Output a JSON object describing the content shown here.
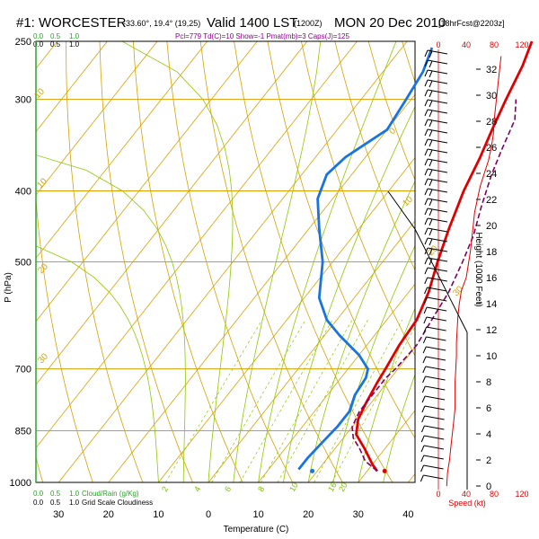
{
  "header": {
    "station": "#1: WORCESTER",
    "coords": "-33.60°, 19.4° (19,25)",
    "valid": "Valid 1400 LST",
    "utc": "(1200Z)",
    "date": "MON 20 Dec 2010",
    "forecast": "[18hrFcst@2203z]",
    "subtitle": "Pcl=779 Td(C)=10 Show=-1 Pmat(mb)=3 Caps(J)=125"
  },
  "left_scale": {
    "labels": [
      "0.0",
      "0.5",
      "1.0"
    ],
    "bottom_legend_green": "Cloud/Rain (g/Kg)",
    "bottom_legend_black": "Grid Scale Cloudiness"
  },
  "speed_scale": {
    "top_ticks": [
      "0",
      "40",
      "80",
      "120"
    ],
    "bottom_ticks": [
      "0",
      "40",
      "80",
      "120"
    ],
    "label": "Speed (kt)"
  },
  "chart_data": {
    "type": "line",
    "title": "",
    "xlabel": "Temperature (C)",
    "ylabel": "P (hPa)",
    "y2label": "Height (1000 Feet)",
    "x_ticks": [
      -30,
      -20,
      -10,
      0,
      10,
      20,
      30,
      40
    ],
    "x_tick_labels": [
      "30",
      "20",
      "10",
      "0",
      "10",
      "20",
      "30",
      "40"
    ],
    "p_ticks": [
      250,
      300,
      400,
      500,
      700,
      850,
      1000
    ],
    "height_ticks": [
      0,
      2,
      4,
      6,
      8,
      10,
      12,
      14,
      16,
      18,
      20,
      22,
      24,
      26,
      28,
      30,
      32
    ],
    "theta_labels": [
      "0",
      "10",
      "20",
      "30",
      "10",
      "10",
      "20",
      "30"
    ],
    "mixing_ratio_labels": [
      "2",
      "4",
      "6",
      "8",
      "10",
      "16",
      "20"
    ],
    "series": [
      {
        "name": "temperature",
        "color": "#e00000",
        "points": [
          [
            32,
            965
          ],
          [
            30,
            945
          ],
          [
            26,
            900
          ],
          [
            22,
            860
          ],
          [
            20,
            820
          ],
          [
            19,
            780
          ],
          [
            18,
            730
          ],
          [
            17.5,
            700
          ],
          [
            16.5,
            650
          ],
          [
            16,
            600
          ],
          [
            14,
            550
          ],
          [
            11,
            500
          ],
          [
            8,
            450
          ],
          [
            5,
            400
          ],
          [
            3,
            360
          ],
          [
            1,
            330
          ],
          [
            -1,
            300
          ],
          [
            -3,
            270
          ],
          [
            -5,
            250
          ]
        ]
      },
      {
        "name": "dewpoint",
        "color": "#1874e0",
        "points": [
          [
            16,
            960
          ],
          [
            16,
            925
          ],
          [
            16.5,
            880
          ],
          [
            17,
            840
          ],
          [
            17,
            800
          ],
          [
            15.5,
            760
          ],
          [
            15,
            720
          ],
          [
            14,
            700
          ],
          [
            10,
            670
          ],
          [
            3,
            630
          ],
          [
            -2,
            600
          ],
          [
            -7,
            560
          ],
          [
            -12,
            500
          ],
          [
            -18,
            450
          ],
          [
            -23,
            410
          ],
          [
            -25,
            380
          ],
          [
            -24,
            360
          ],
          [
            -20,
            330
          ],
          [
            -21,
            300
          ],
          [
            -22,
            275
          ],
          [
            -24,
            255
          ]
        ]
      },
      {
        "name": "parcel",
        "color": "#800060",
        "points": [
          [
            32,
            965
          ],
          [
            28,
            935
          ],
          [
            25,
            900
          ],
          [
            22,
            870
          ],
          [
            20,
            840
          ],
          [
            19,
            800
          ],
          [
            19,
            760
          ],
          [
            19,
            720
          ],
          [
            19.5,
            700
          ],
          [
            20,
            650
          ],
          [
            19,
            600
          ],
          [
            18,
            550
          ],
          [
            16,
            500
          ],
          [
            14,
            460
          ],
          [
            11,
            420
          ],
          [
            8,
            380
          ],
          [
            6,
            350
          ],
          [
            4,
            320
          ],
          [
            1,
            300
          ]
        ]
      }
    ],
    "surface_markers": [
      {
        "name": "surface-temperature",
        "t": 33.5,
        "p": 965,
        "color": "#e00000"
      },
      {
        "name": "surface-dewpoint",
        "t": 19,
        "p": 965,
        "color": "#1874e0"
      }
    ],
    "wind_speed_profile": [
      [
        12,
        0
      ],
      [
        13,
        1
      ],
      [
        16,
        2
      ],
      [
        18,
        3
      ],
      [
        20,
        4
      ],
      [
        22,
        5
      ],
      [
        24,
        6
      ],
      [
        24,
        7
      ],
      [
        24,
        8
      ],
      [
        25,
        9
      ],
      [
        26,
        10
      ],
      [
        26,
        11
      ],
      [
        27,
        12
      ],
      [
        28,
        13
      ],
      [
        30,
        14
      ],
      [
        33,
        15
      ],
      [
        40,
        16
      ],
      [
        43,
        17
      ],
      [
        46,
        18
      ],
      [
        48,
        19
      ],
      [
        50,
        20
      ],
      [
        52,
        21
      ],
      [
        56,
        22
      ],
      [
        60,
        23
      ],
      [
        66,
        24
      ],
      [
        72,
        25
      ],
      [
        76,
        26
      ],
      [
        79,
        27
      ],
      [
        80,
        28
      ],
      [
        82,
        29
      ],
      [
        84,
        30
      ],
      [
        86,
        31
      ],
      [
        88,
        32
      ],
      [
        90,
        33
      ]
    ]
  }
}
